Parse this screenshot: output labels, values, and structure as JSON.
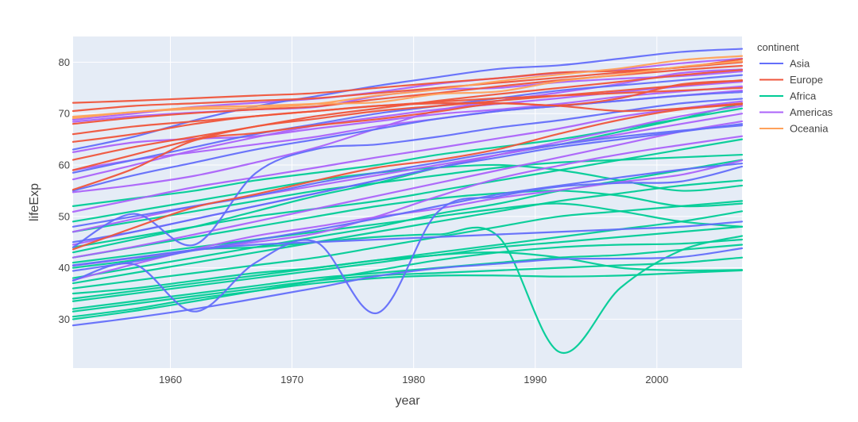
{
  "chart_data": {
    "type": "line",
    "title": "",
    "xlabel": "year",
    "ylabel": "lifeExp",
    "xlim": [
      1952,
      2007
    ],
    "ylim": [
      20.5,
      85
    ],
    "x_ticks": [
      1960,
      1970,
      1980,
      1990,
      2000
    ],
    "y_ticks": [
      30,
      40,
      50,
      60,
      70,
      80
    ],
    "grid": true,
    "background": "#e5ecf6",
    "legend": {
      "title": "continent",
      "position": "right"
    },
    "x": [
      1952,
      1957,
      1962,
      1967,
      1972,
      1977,
      1982,
      1987,
      1992,
      1997,
      2002,
      2007
    ],
    "series": [
      {
        "name": "Asia",
        "color": "#636efa",
        "lines": [
          [
            28.8,
            30.3,
            32.0,
            34.0,
            36.1,
            38.4,
            39.9,
            40.8,
            41.7,
            41.8,
            42.1,
            43.8
          ],
          [
            37.5,
            40.7,
            31.5,
            41.0,
            45.0,
            31.2,
            50.9,
            53.9,
            55.8,
            56.5,
            56.8,
            59.7
          ],
          [
            39.4,
            41.2,
            43.4,
            45.4,
            47.4,
            49.6,
            52.0,
            54.3,
            56.0,
            57.6,
            59.1,
            60.3
          ],
          [
            44.0,
            50.5,
            44.5,
            58.4,
            63.1,
            64.0,
            65.5,
            67.3,
            68.7,
            70.4,
            72.0,
            72.9
          ],
          [
            63.0,
            65.5,
            68.7,
            71.4,
            73.4,
            75.4,
            77.1,
            78.7,
            79.4,
            80.7,
            82.0,
            82.6
          ],
          [
            48.0,
            50.0,
            52.0,
            54.0,
            56.5,
            58.5,
            60.5,
            62.5,
            64.0,
            65.5,
            66.7,
            67.7
          ],
          [
            55.0,
            58.0,
            60.5,
            63.0,
            65.0,
            67.0,
            69.0,
            70.5,
            71.5,
            72.5,
            73.5,
            74.2
          ],
          [
            45.0,
            47.0,
            49.5,
            52.0,
            54.5,
            57.0,
            59.5,
            61.5,
            63.5,
            65.0,
            66.5,
            68.0
          ],
          [
            58.5,
            61.0,
            63.5,
            66.0,
            68.0,
            70.0,
            71.5,
            73.0,
            74.5,
            75.5,
            76.5,
            77.5
          ],
          [
            40.5,
            42.0,
            43.5,
            44.5,
            45.0,
            45.5,
            46.0,
            46.5,
            47.0,
            47.5,
            48.0,
            49.0
          ]
        ]
      },
      {
        "name": "Europe",
        "color": "#ef553b",
        "lines": [
          [
            55.2,
            59.3,
            64.8,
            66.2,
            67.7,
            68.9,
            70.4,
            72.0,
            71.6,
            73.0,
            75.7,
            76.4
          ],
          [
            72.1,
            72.5,
            73.0,
            73.5,
            74.0,
            75.0,
            76.0,
            76.9,
            78.0,
            78.3,
            79.0,
            80.6
          ],
          [
            68.0,
            69.2,
            70.1,
            70.8,
            71.4,
            72.8,
            74.0,
            75.3,
            76.5,
            77.5,
            78.5,
            79.3
          ],
          [
            61.0,
            63.5,
            65.5,
            67.5,
            69.5,
            71.0,
            72.5,
            73.8,
            75.0,
            76.2,
            77.5,
            78.5
          ],
          [
            64.5,
            66.0,
            68.0,
            69.5,
            70.5,
            71.5,
            72.3,
            73.0,
            73.5,
            74.0,
            74.5,
            75.0
          ],
          [
            70.5,
            71.5,
            72.0,
            72.5,
            73.0,
            74.0,
            75.0,
            76.0,
            77.0,
            78.0,
            79.0,
            80.0
          ],
          [
            59.0,
            62.0,
            65.0,
            67.5,
            69.0,
            70.5,
            71.5,
            72.5,
            73.5,
            74.5,
            75.5,
            76.5
          ],
          [
            66.0,
            67.5,
            68.5,
            69.5,
            70.5,
            71.5,
            72.0,
            72.0,
            71.5,
            70.5,
            71.0,
            72.0
          ],
          [
            43.6,
            47.8,
            51.8,
            54.3,
            57.0,
            59.5,
            61.0,
            63.1,
            66.1,
            68.8,
            70.8,
            71.8
          ]
        ]
      },
      {
        "name": "Africa",
        "color": "#00cc96",
        "lines": [
          [
            30.0,
            31.6,
            33.5,
            35.5,
            37.5,
            39.5,
            41.5,
            43.0,
            44.0,
            44.5,
            44.7,
            45.5
          ],
          [
            40.0,
            41.5,
            43.5,
            44.0,
            45.0,
            46.0,
            46.5,
            46.0,
            23.6,
            36.1,
            43.4,
            46.2
          ],
          [
            43.0,
            45.5,
            48.0,
            51.0,
            54.0,
            56.5,
            59.5,
            62.0,
            64.0,
            66.5,
            69.0,
            72.0
          ],
          [
            33.5,
            35.0,
            36.5,
            38.0,
            39.5,
            41.0,
            42.5,
            43.0,
            42.0,
            40.0,
            39.5,
            39.6
          ],
          [
            38.0,
            40.0,
            42.0,
            44.0,
            46.0,
            48.0,
            50.5,
            52.5,
            55.0,
            57.0,
            59.0,
            61.0
          ],
          [
            42.0,
            44.0,
            46.0,
            48.0,
            50.0,
            52.0,
            53.5,
            54.5,
            55.0,
            54.0,
            52.0,
            52.5
          ],
          [
            36.0,
            37.5,
            39.0,
            40.5,
            42.0,
            44.0,
            46.0,
            48.0,
            50.0,
            51.0,
            52.0,
            53.0
          ],
          [
            47.0,
            49.0,
            51.0,
            53.0,
            55.0,
            56.5,
            58.0,
            59.5,
            60.5,
            61.0,
            61.5,
            62.0
          ],
          [
            32.0,
            33.5,
            35.0,
            36.5,
            38.0,
            39.0,
            40.0,
            41.0,
            42.0,
            42.5,
            43.5,
            44.5
          ],
          [
            35.0,
            36.0,
            37.5,
            39.0,
            40.0,
            41.5,
            42.5,
            44.0,
            45.0,
            46.0,
            47.0,
            48.0
          ],
          [
            44.0,
            46.0,
            48.0,
            50.0,
            51.5,
            53.0,
            55.0,
            57.0,
            59.0,
            61.0,
            63.0,
            65.0
          ],
          [
            31.5,
            33.0,
            34.5,
            36.0,
            37.5,
            38.5,
            39.0,
            39.5,
            40.0,
            40.5,
            41.0,
            42.0
          ],
          [
            49.0,
            51.0,
            53.0,
            55.0,
            57.0,
            58.5,
            59.5,
            60.0,
            59.0,
            57.0,
            55.0,
            56.0
          ],
          [
            30.5,
            32.0,
            34.0,
            35.5,
            37.0,
            38.0,
            38.5,
            38.5,
            38.3,
            38.5,
            39.0,
            39.5
          ],
          [
            52.0,
            53.5,
            55.0,
            57.0,
            58.5,
            60.0,
            62.0,
            63.5,
            65.0,
            67.0,
            69.0,
            71.0
          ],
          [
            37.0,
            39.0,
            41.0,
            43.0,
            45.0,
            47.0,
            49.0,
            51.0,
            53.0,
            54.5,
            56.0,
            57.0
          ],
          [
            41.0,
            42.5,
            44.0,
            45.5,
            47.0,
            48.5,
            50.0,
            51.5,
            52.5,
            51.0,
            49.0,
            48.0
          ],
          [
            34.0,
            35.5,
            37.0,
            38.5,
            40.0,
            41.5,
            43.0,
            44.5,
            46.0,
            47.5,
            49.0,
            51.0
          ]
        ]
      },
      {
        "name": "Americas",
        "color": "#ab63fa",
        "lines": [
          [
            62.5,
            64.4,
            65.1,
            65.6,
            67.1,
            68.5,
            69.9,
            70.8,
            71.9,
            73.3,
            74.3,
            75.3
          ],
          [
            40.4,
            41.9,
            43.4,
            45.0,
            46.7,
            50.0,
            53.9,
            57.4,
            59.9,
            62.1,
            63.9,
            65.6
          ],
          [
            50.9,
            53.3,
            55.7,
            57.6,
            59.5,
            61.5,
            63.3,
            65.2,
            67.1,
            69.4,
            71.0,
            72.4
          ],
          [
            68.8,
            70.0,
            71.3,
            72.1,
            72.9,
            74.2,
            75.8,
            76.9,
            77.9,
            78.6,
            79.8,
            80.7
          ],
          [
            54.7,
            56.1,
            57.9,
            60.5,
            63.4,
            67.1,
            70.6,
            72.5,
            74.1,
            75.8,
            77.9,
            78.6
          ],
          [
            37.6,
            40.7,
            43.6,
            46.2,
            48.0,
            49.9,
            51.5,
            53.6,
            55.1,
            56.7,
            58.1,
            60.9
          ],
          [
            57.2,
            60.0,
            62.9,
            65.4,
            67.7,
            69.3,
            70.8,
            71.9,
            73.0,
            74.2,
            75.3,
            76.2
          ],
          [
            68.4,
            69.5,
            70.2,
            70.8,
            71.3,
            73.4,
            74.7,
            75.0,
            76.1,
            76.8,
            77.3,
            78.2
          ],
          [
            42.0,
            44.1,
            46.5,
            49.0,
            51.5,
            54.0,
            56.5,
            59.0,
            61.5,
            64.0,
            66.5,
            68.5
          ],
          [
            59.0,
            61.0,
            62.5,
            64.0,
            65.5,
            67.5,
            69.0,
            70.5,
            71.5,
            72.5,
            73.5,
            74.5
          ],
          [
            47.0,
            49.5,
            52.0,
            54.0,
            56.0,
            58.0,
            60.0,
            62.0,
            64.0,
            66.0,
            68.0,
            70.0
          ],
          [
            44.5,
            47.0,
            49.5,
            52.0,
            54.5,
            57.0,
            59.5,
            62.0,
            64.5,
            67.0,
            69.5,
            71.5
          ]
        ]
      },
      {
        "name": "Oceania",
        "color": "#ffa15a",
        "lines": [
          [
            69.1,
            70.3,
            70.9,
            71.1,
            71.9,
            73.5,
            74.7,
            76.3,
            77.6,
            78.8,
            80.4,
            81.2
          ],
          [
            69.4,
            70.3,
            71.2,
            71.5,
            71.9,
            72.2,
            73.8,
            74.3,
            76.3,
            77.6,
            79.1,
            80.2
          ]
        ]
      }
    ]
  }
}
